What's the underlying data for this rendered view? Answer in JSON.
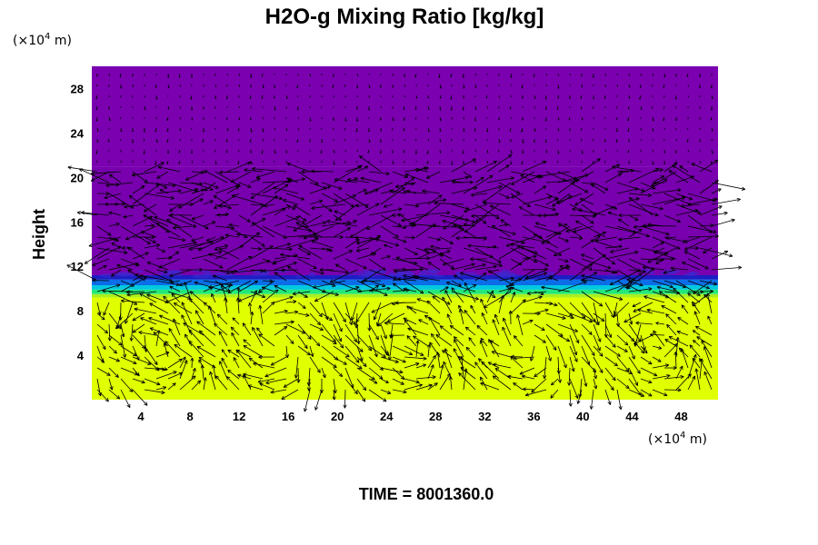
{
  "chart_data": {
    "type": "heatmap",
    "title": "H2O-g Mixing Ratio [kg/kg]",
    "ylabel": "Height",
    "x_unit": {
      "prefix": "(×10",
      "exp": "4",
      "suffix": " m)"
    },
    "y_unit": {
      "prefix": "(×10",
      "exp": "4",
      "suffix": " m)"
    },
    "xlim": [
      0,
      51
    ],
    "ylim": [
      0,
      30
    ],
    "x_ticks": [
      4,
      8,
      12,
      16,
      20,
      24,
      28,
      32,
      36,
      40,
      44,
      48
    ],
    "y_ticks": [
      4,
      8,
      12,
      16,
      20,
      24,
      28
    ],
    "layers": [
      {
        "from": 21,
        "to": 30,
        "color": "#7a00b0"
      },
      {
        "from": 11.2,
        "to": 21,
        "color": "#7800ae"
      },
      {
        "from": 10.8,
        "to": 11.2,
        "color": "#1b1ec4"
      },
      {
        "from": 10.3,
        "to": 10.8,
        "color": "#0b6ee8"
      },
      {
        "from": 9.9,
        "to": 10.3,
        "color": "#00c8e0"
      },
      {
        "from": 9.5,
        "to": 9.9,
        "color": "#22e87a"
      },
      {
        "from": 9.2,
        "to": 9.5,
        "color": "#a8f020"
      },
      {
        "from": 0,
        "to": 9.2,
        "color": "#e0ff00"
      }
    ],
    "vectors": "wind-field-arrows",
    "time_label": "TIME = 8001360.0"
  }
}
